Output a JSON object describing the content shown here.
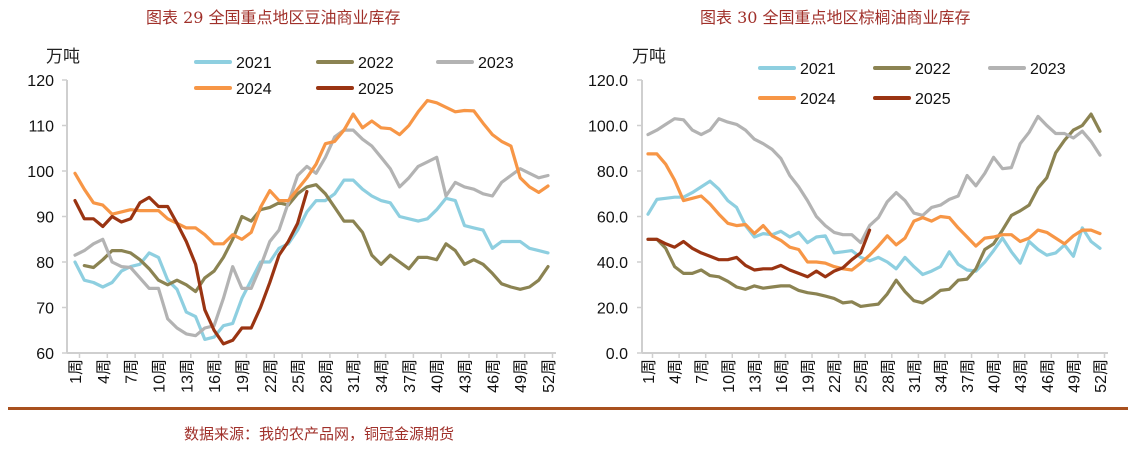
{
  "titles": [
    "图表 29  全国重点地区豆油商业库存",
    "图表 30  全国重点地区棕榈油商业库存"
  ],
  "source": "数据来源：我的农产品网，铜冠金源期货",
  "chart_data": [
    {
      "type": "line",
      "title": "图表 29  全国重点地区豆油商业库存",
      "ylabel": "万吨",
      "ylim": [
        60,
        120
      ],
      "yticks": [
        60,
        70,
        80,
        90,
        100,
        110,
        120
      ],
      "ytick_labels": [
        "60",
        "70",
        "80",
        "90",
        "100",
        "110",
        "120"
      ],
      "x_label_suffix": "周",
      "x_ticks": [
        1,
        4,
        7,
        10,
        13,
        16,
        19,
        22,
        25,
        28,
        31,
        34,
        37,
        40,
        43,
        46,
        49,
        52
      ],
      "x_tick_labels": [
        "1周",
        "4周",
        "7周",
        "10周",
        "13周",
        "16周",
        "19周",
        "22周",
        "25周",
        "28周",
        "31周",
        "34周",
        "37周",
        "40周",
        "43周",
        "46周",
        "49周",
        "52周"
      ],
      "legend": "top",
      "grid": false,
      "series": [
        {
          "name": "2021",
          "color": "#8ecfe0",
          "start": 1,
          "values": [
            80,
            76,
            75.5,
            74.5,
            75.5,
            78,
            79,
            79.5,
            82,
            81,
            76,
            74,
            69,
            68,
            63,
            63.5,
            66,
            66.5,
            72,
            76,
            80,
            80,
            83,
            84,
            87,
            91,
            93.5,
            93.5,
            95,
            98,
            98,
            96,
            94.5,
            93.5,
            93,
            90,
            89.5,
            89,
            89.5,
            91.5,
            94,
            93.5,
            88,
            87.5,
            87,
            83,
            84.5,
            84.5,
            84.5,
            83,
            82.5,
            82
          ]
        },
        {
          "name": "2022",
          "color": "#8b8352",
          "start": 2,
          "values": [
            79.2,
            78.8,
            80.5,
            82.5,
            82.5,
            82,
            80.5,
            78.5,
            76,
            75,
            76,
            75,
            73.5,
            76.5,
            78,
            81,
            85,
            90,
            89,
            91.5,
            92,
            93,
            92.5,
            95,
            96.5,
            97,
            95,
            92,
            89,
            89,
            86.5,
            81.5,
            79.5,
            81.5,
            80,
            78.5,
            81,
            81,
            80.5,
            84,
            82.5,
            79.5,
            80.5,
            79.5,
            77.5,
            75.2,
            74.5,
            74,
            74.5,
            76,
            79
          ]
        },
        {
          "name": "2023",
          "color": "#b3b3b3",
          "start": 1,
          "values": [
            81.5,
            82.5,
            84,
            85,
            80,
            79,
            78.8,
            76.5,
            74.2,
            74.2,
            67.5,
            65.5,
            64.2,
            63.8,
            65.5,
            66,
            72,
            79,
            74.2,
            74.2,
            79,
            84.5,
            87,
            93,
            99,
            101,
            99.5,
            103,
            107.5,
            109,
            109,
            107,
            105.5,
            103,
            100.5,
            96.5,
            98.5,
            101,
            102,
            103,
            94.5,
            97.5,
            96.5,
            96,
            95,
            94.5,
            97.5,
            99,
            100.5,
            99.5,
            98.5,
            99
          ]
        },
        {
          "name": "2024",
          "color": "#f79646",
          "start": 1,
          "values": [
            99.5,
            96,
            93,
            92.5,
            90.5,
            91,
            91.5,
            91.3,
            91.3,
            91.3,
            89.5,
            88.5,
            87.5,
            87.5,
            86,
            84,
            84,
            86,
            85,
            86.5,
            92,
            95.7,
            93.5,
            93.5,
            96,
            98.5,
            101.5,
            106,
            106.5,
            109,
            112.5,
            109.5,
            111,
            109.5,
            109.3,
            108,
            110,
            113,
            115.5,
            115,
            114,
            113,
            113.3,
            113.2,
            110.5,
            108,
            106.5,
            105.5,
            98.5,
            96.5,
            95.3,
            96.7
          ]
        },
        {
          "name": "2025",
          "color": "#9a3412",
          "start": 1,
          "values": [
            93.5,
            89.5,
            89.5,
            87.8,
            90,
            88.8,
            89.5,
            93,
            94.2,
            92.2,
            92.2,
            88.5,
            84.5,
            79.5,
            69.5,
            65,
            62,
            62.8,
            65.5,
            65.5,
            70,
            75.5,
            81.5,
            84.5,
            88.5,
            95.5
          ]
        }
      ]
    },
    {
      "type": "line",
      "title": "图表 30  全国重点地区棕榈油商业库存",
      "ylabel": "万吨",
      "ylim": [
        0,
        120
      ],
      "yticks": [
        0,
        20,
        40,
        60,
        80,
        100,
        120
      ],
      "ytick_labels": [
        "0.0",
        "20.0",
        "40.0",
        "60.0",
        "80.0",
        "100.0",
        "120.0"
      ],
      "x_ticks": [
        1,
        4,
        7,
        10,
        13,
        16,
        19,
        22,
        25,
        28,
        31,
        34,
        37,
        40,
        43,
        46,
        49,
        52
      ],
      "x_tick_labels": [
        "1周",
        "4周",
        "7周",
        "10周",
        "13周",
        "16周",
        "19周",
        "22周",
        "25周",
        "28周",
        "31周",
        "34周",
        "37周",
        "40周",
        "43周",
        "46周",
        "49周",
        "52周"
      ],
      "legend": "top",
      "grid": false,
      "series": [
        {
          "name": "2021",
          "color": "#8ecfe0",
          "start": 1,
          "values": [
            61,
            67.5,
            68,
            68.5,
            68.5,
            70.5,
            73,
            75.5,
            72,
            67,
            64,
            56,
            51,
            52.5,
            52,
            53.5,
            51,
            53,
            48.5,
            51,
            51.5,
            44,
            44.5,
            45,
            42,
            40.5,
            42,
            40,
            37,
            42,
            38,
            34.5,
            36,
            38,
            44.5,
            39,
            36.5,
            36,
            40,
            45,
            50.5,
            44.5,
            39.5,
            49,
            45.5,
            43,
            44,
            47.5,
            42.5,
            55,
            49,
            46
          ]
        },
        {
          "name": "2022",
          "color": "#8b8352",
          "start": 1,
          "values": [
            50,
            50,
            46,
            38,
            35,
            35,
            36.5,
            34,
            33.5,
            31.5,
            29,
            28,
            29.5,
            28.5,
            29,
            29.5,
            29.5,
            27.5,
            26.5,
            26,
            25,
            24,
            22,
            22.5,
            20.5,
            21,
            21.5,
            26,
            32,
            27,
            23,
            22,
            24.5,
            27.5,
            28,
            32,
            32.5,
            37,
            45.5,
            48,
            54,
            60.5,
            62.5,
            65,
            72.5,
            77,
            88,
            93.5,
            98,
            100,
            105,
            97.5
          ]
        },
        {
          "name": "2023",
          "color": "#b3b3b3",
          "start": 1,
          "values": [
            96,
            98,
            100.5,
            103,
            102.5,
            98,
            96,
            98,
            103,
            101.5,
            100.5,
            98,
            94,
            92,
            89.5,
            85.5,
            78,
            73,
            67,
            60,
            56,
            53,
            52,
            52,
            48.5,
            56,
            59.5,
            66.5,
            70.5,
            67,
            61.5,
            60.5,
            64,
            65,
            67.5,
            69,
            78,
            73.5,
            79,
            86,
            81,
            81.5,
            92,
            97,
            104,
            100,
            96.5,
            96.5,
            94.5,
            97.5,
            93,
            87
          ]
        },
        {
          "name": "2024",
          "color": "#f79646",
          "start": 1,
          "values": [
            87.5,
            87.5,
            83,
            76,
            67,
            68,
            69,
            65.5,
            61,
            57,
            56,
            56.5,
            52.5,
            56,
            51.5,
            49.5,
            46.5,
            45.5,
            40,
            40,
            39.5,
            38,
            37,
            36.5,
            39.5,
            43,
            47,
            51.5,
            47.5,
            50.5,
            58,
            59.5,
            58,
            60,
            59.5,
            55,
            51,
            47,
            50.5,
            51,
            52,
            52,
            49,
            50.5,
            54,
            53,
            50.5,
            48,
            51.5,
            54,
            54,
            52.5
          ]
        },
        {
          "name": "2025",
          "color": "#9a3412",
          "start": 1,
          "values": [
            50,
            50,
            48,
            46.5,
            49,
            46,
            44,
            42.5,
            41,
            41,
            42,
            38.5,
            36.5,
            37,
            37,
            38.5,
            36.5,
            35,
            33.5,
            36,
            33.5,
            36,
            37.5,
            41,
            44,
            54
          ]
        }
      ]
    }
  ]
}
